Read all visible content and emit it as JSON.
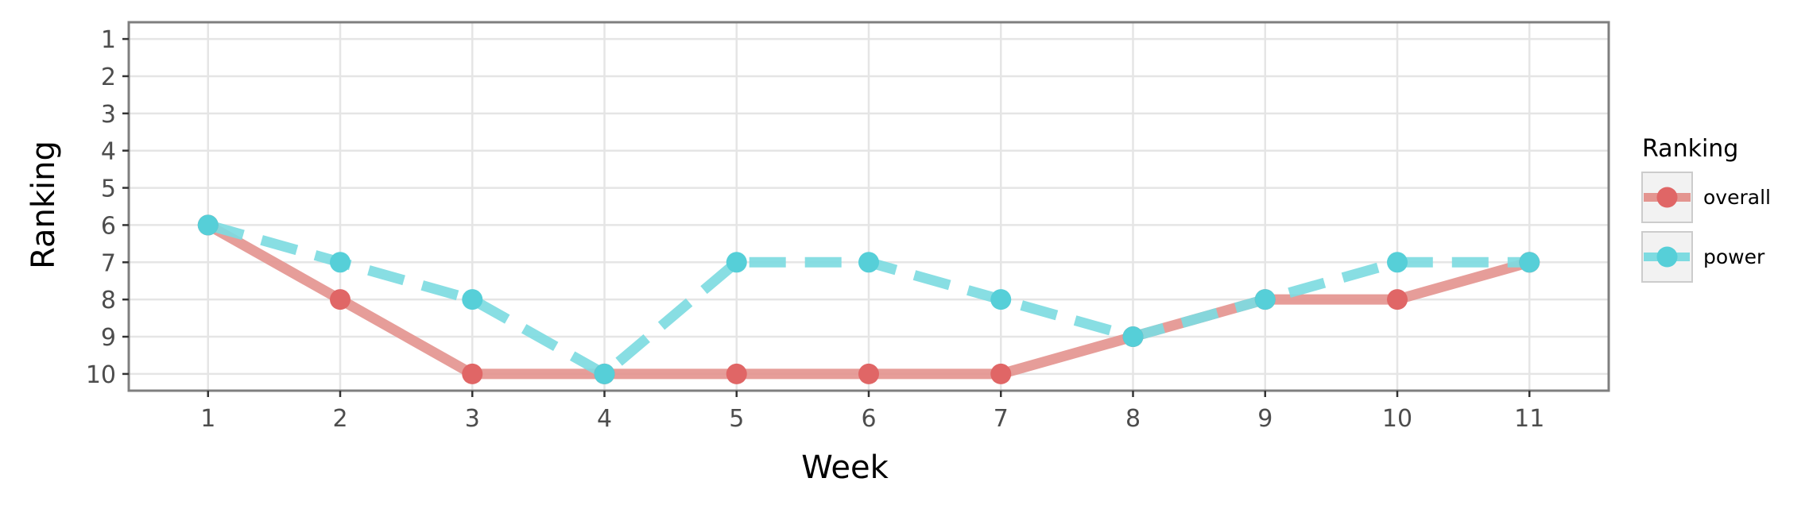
{
  "chart_data": {
    "type": "line",
    "xlabel": "Week",
    "ylabel": "Ranking",
    "x": [
      1,
      2,
      3,
      4,
      5,
      6,
      7,
      8,
      9,
      10,
      11
    ],
    "x_ticks": [
      "1",
      "2",
      "3",
      "4",
      "5",
      "6",
      "7",
      "8",
      "9",
      "10",
      "11"
    ],
    "y_ticks": [
      "1",
      "2",
      "3",
      "4",
      "5",
      "6",
      "7",
      "8",
      "9",
      "10"
    ],
    "xlim": [
      0.4,
      11.6
    ],
    "ylim": [
      0.55,
      10.45
    ],
    "y_reversed": true,
    "grid": true,
    "legend": {
      "title": "Ranking",
      "position": "right"
    },
    "series": [
      {
        "name": "overall",
        "color": "#E06666",
        "line_color": "#E49590",
        "dashed": false,
        "values": [
          6,
          8,
          10,
          10,
          10,
          10,
          10,
          9,
          8,
          8,
          7
        ]
      },
      {
        "name": "power",
        "color": "#56CFD8",
        "line_color": "#7EDBE1",
        "dashed": true,
        "values": [
          6,
          7,
          8,
          10,
          7,
          7,
          8,
          9,
          8,
          7,
          7
        ]
      }
    ]
  }
}
